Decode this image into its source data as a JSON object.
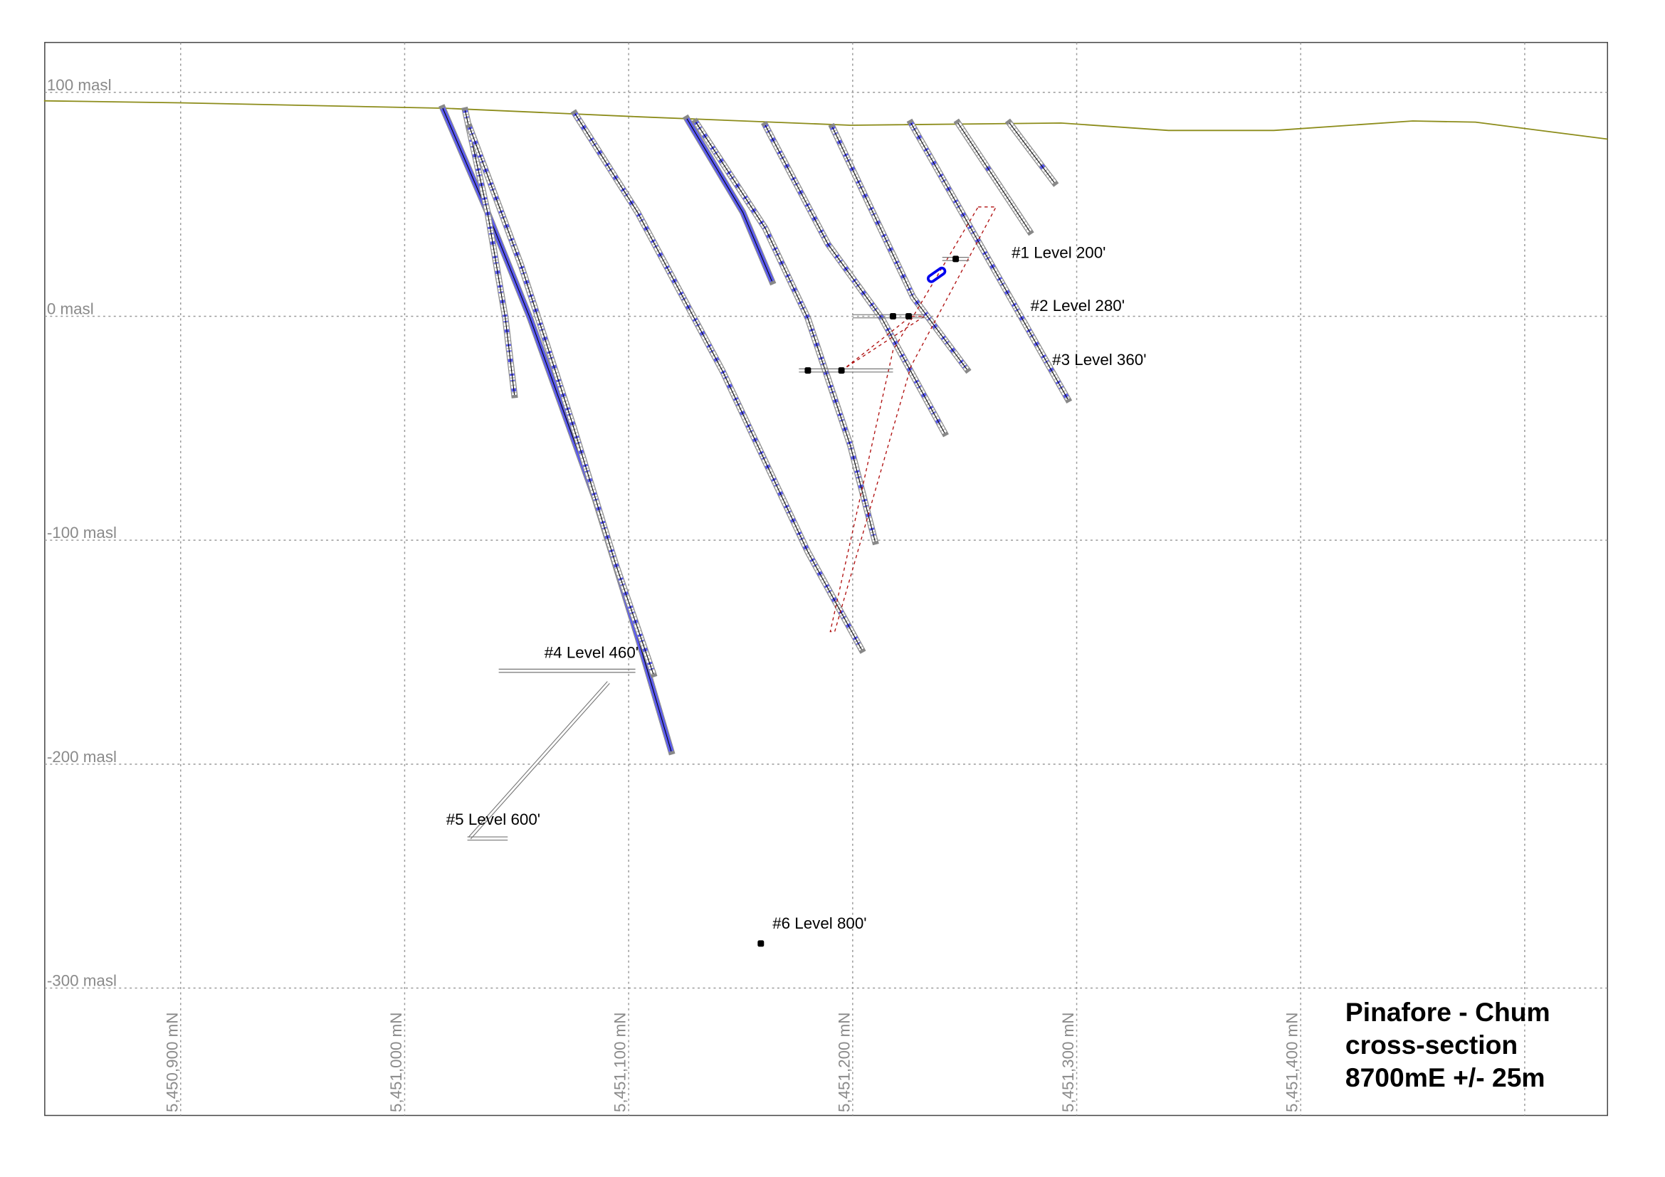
{
  "title": [
    "Pinafore - Chum",
    "cross-section",
    "8700mE +/- 25m"
  ],
  "colors": {
    "topo": "#8c8c1a",
    "grid": "#9a9a9a",
    "hole_blue": "#5a5af0",
    "hole_outline": "#888888",
    "ore_outline": "#b01010",
    "drift": "#777777"
  },
  "chart_data": {
    "type": "cross-section",
    "xlabel_unit": "mN",
    "ylabel_unit": "masl",
    "xlim": [
      5450840,
      5451537
    ],
    "ylim": [
      -350,
      120
    ],
    "grid": true,
    "x_ticks": [
      {
        "value": 5450900,
        "label": "5,450,900 mN"
      },
      {
        "value": 5451000,
        "label": "5,451,000 mN"
      },
      {
        "value": 5451100,
        "label": "5,451,100 mN"
      },
      {
        "value": 5451200,
        "label": "5,451,200 mN"
      },
      {
        "value": 5451300,
        "label": "5,451,300 mN"
      },
      {
        "value": 5451400,
        "label": "5,451,400 mN"
      },
      {
        "value": 5451500,
        "label": ""
      }
    ],
    "y_ticks": [
      {
        "value": 100,
        "label": "100 masl"
      },
      {
        "value": 0,
        "label": "0 masl"
      },
      {
        "value": -100,
        "label": "-100 masl"
      },
      {
        "value": -200,
        "label": "-200 masl"
      },
      {
        "value": -300,
        "label": "-300 masl"
      }
    ],
    "topography": [
      [
        5450839,
        96.2
      ],
      [
        5450900,
        95.3
      ],
      [
        5451018,
        92.9
      ],
      [
        5451104,
        89.1
      ],
      [
        5451199,
        85.3
      ],
      [
        5451293,
        86.3
      ],
      [
        5451341,
        83.0
      ],
      [
        5451388,
        83.0
      ],
      [
        5451450,
        87.2
      ],
      [
        5451478,
        86.7
      ],
      [
        5451537,
        79.1
      ]
    ],
    "drill_holes": [
      {
        "style": "solid",
        "trace": [
          [
            5451017,
            92.9
          ],
          [
            5451037,
            46.4
          ],
          [
            5451056,
            -0.9
          ],
          [
            5451085,
            -81.5
          ],
          [
            5451104,
            -143.1
          ],
          [
            5451119,
            -194.3
          ]
        ]
      },
      {
        "style": "ticked",
        "trace": [
          [
            5451027,
            91.9
          ],
          [
            5451037,
            46.4
          ],
          [
            5451045,
            -1
          ],
          [
            5451049,
            -35.1
          ]
        ]
      },
      {
        "style": "ticked",
        "trace": [
          [
            5451029,
            84.4
          ],
          [
            5451052,
            22.7
          ],
          [
            5451075,
            -48.3
          ],
          [
            5451094,
            -110
          ],
          [
            5451111,
            -159.7
          ]
        ]
      },
      {
        "style": "ticked",
        "trace": [
          [
            5451076,
            90.5
          ],
          [
            5451104,
            46.4
          ],
          [
            5451142,
            -24.6
          ],
          [
            5451180,
            -105.2
          ],
          [
            5451204,
            -148.8
          ]
        ]
      },
      {
        "style": "solid",
        "trace": [
          [
            5451126,
            88.2
          ],
          [
            5451151,
            46.4
          ],
          [
            5451164,
            15.6
          ]
        ]
      },
      {
        "style": "ticked",
        "trace": [
          [
            5451130,
            86.7
          ],
          [
            5451161,
            39.3
          ],
          [
            5451180,
            -0.9
          ],
          [
            5451199,
            -57.8
          ],
          [
            5451210,
            -100.5
          ]
        ]
      },
      {
        "style": "ticked",
        "trace": [
          [
            5451161,
            85.3
          ],
          [
            5451189,
            32.2
          ],
          [
            5451213,
            -0.9
          ],
          [
            5451241,
            -52.1
          ]
        ]
      },
      {
        "style": "ticked",
        "trace": [
          [
            5451191,
            84.4
          ],
          [
            5451227,
            8.5
          ],
          [
            5451251,
            -23.7
          ]
        ]
      },
      {
        "style": "ticked",
        "trace": [
          [
            5451226,
            86.3
          ],
          [
            5451246,
            51.2
          ],
          [
            5451296,
            -37.0
          ]
        ]
      },
      {
        "style": "sparse",
        "trace": [
          [
            5451247,
            86.3
          ],
          [
            5451279,
            37.9
          ]
        ]
      },
      {
        "style": "sparse",
        "trace": [
          [
            5451270,
            86.3
          ],
          [
            5451290,
            59.7
          ]
        ]
      }
    ],
    "levels": [
      {
        "label": "#1 Level 200'",
        "elevation": 25.6,
        "from": 5451240,
        "to": 5451252,
        "stations": [
          5451246
        ]
      },
      {
        "label": "#2 Level 280'",
        "elevation": 0,
        "from": 5451200,
        "to": 5451232,
        "stations": [
          5451218,
          5451225
        ]
      },
      {
        "label": "#3 Level 360'",
        "elevation": -24.2,
        "from": 5451176,
        "to": 5451218,
        "stations": [
          5451180,
          5451195
        ]
      },
      {
        "label": "#4 Level 460'",
        "elevation": -158.3,
        "from": 5451042,
        "to": 5451103,
        "stations": []
      },
      {
        "label": "#5 Level 600'",
        "elevation": -233.2,
        "from": 5451028,
        "to": 5451046,
        "stations": []
      },
      {
        "label": "#6 Level 800'",
        "elevation": -280.1,
        "from": 5451159,
        "to": 5451159,
        "stations": [
          5451159
        ]
      }
    ],
    "ramp": [
      [
        5451091,
        -163.5
      ],
      [
        5451029,
        -233
      ]
    ],
    "ore_outline": [
      [
        5451256,
        48.8
      ],
      [
        5451264,
        48.8
      ],
      [
        5451226,
        -22.3
      ],
      [
        5451192,
        -140.8
      ],
      [
        5451190,
        -140.8
      ],
      [
        5451218,
        -15.2
      ]
    ],
    "ore_outline_2": [
      [
        5451195,
        -24.2
      ],
      [
        5451232,
        0
      ],
      [
        5451226,
        0
      ],
      [
        5451198,
        -22
      ]
    ]
  }
}
